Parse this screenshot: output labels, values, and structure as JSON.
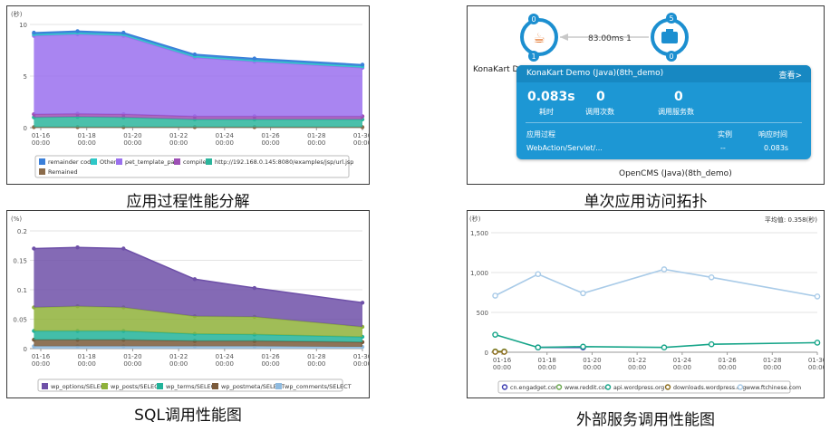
{
  "captions": {
    "app_breakdown": "应用过程性能分解",
    "topology": "单次应用访问拓扑",
    "sql": "SQL调用性能图",
    "external": "外部服务调用性能图"
  },
  "colors": {
    "panel_border": "#3a3a3a",
    "card_bg": "#1d97d4",
    "card_header": "#1788c2",
    "node_ring": "#1c8fd0",
    "badge": "#1c8fd0"
  },
  "chart_data": [
    {
      "id": "app_breakdown",
      "type": "area",
      "stacked": true,
      "ylabel": "(秒)",
      "ylim": [
        0,
        10
      ],
      "yticks": [
        "0",
        "5",
        "10"
      ],
      "xticks": [
        "01-16\n00:00",
        "01-18\n00:00",
        "01-20\n00:00",
        "01-22\n00:00",
        "01-24\n00:00",
        "01-26\n00:00",
        "01-28\n00:00",
        "01-30\n00:00"
      ],
      "x": [
        15.7,
        17.6,
        19.6,
        22.7,
        25.3,
        30.0
      ],
      "legend_position": "bottom",
      "series": [
        {
          "name": "Remained",
          "color": "#8b6b4a",
          "values": [
            0.05,
            0.05,
            0.05,
            0.05,
            0.05,
            0.05
          ]
        },
        {
          "name": "http://192.168.0.145:8080/examples/jsp/url.jsp",
          "color": "#2bb59c",
          "values": [
            0.95,
            1.0,
            0.95,
            0.75,
            0.75,
            0.75
          ]
        },
        {
          "name": "compile",
          "color": "#9d4fb5",
          "values": [
            0.3,
            0.3,
            0.3,
            0.3,
            0.3,
            0.3
          ]
        },
        {
          "name": "pet_template_part",
          "color": "#9a70ee",
          "values": [
            7.6,
            7.7,
            7.6,
            5.7,
            5.3,
            4.7
          ]
        },
        {
          "name": "Other",
          "color": "#2ec8c8",
          "values": [
            0.15,
            0.15,
            0.15,
            0.15,
            0.15,
            0.15
          ]
        },
        {
          "name": "remainder code",
          "color": "#3a7fd9",
          "values": [
            0.15,
            0.15,
            0.15,
            0.15,
            0.15,
            0.15
          ]
        }
      ]
    },
    {
      "id": "sql",
      "type": "area",
      "stacked": true,
      "ylabel": "(%)",
      "ylim": [
        0,
        0.2
      ],
      "yticks": [
        "0",
        "0.05",
        "0.1",
        "0.15",
        "0.2"
      ],
      "xticks": [
        "01-16\n00:00",
        "01-18\n00:00",
        "01-20\n00:00",
        "01-22\n00:00",
        "01-24\n00:00",
        "01-26\n00:00",
        "01-28\n00:00",
        "01-30\n00:00"
      ],
      "x": [
        15.7,
        17.6,
        19.6,
        22.7,
        25.3,
        30.0
      ],
      "legend_position": "bottom",
      "series": [
        {
          "name": "wp_comments/SELECT",
          "color": "#8fbbe0",
          "values": [
            0.004,
            0.004,
            0.004,
            0.004,
            0.004,
            0.003
          ]
        },
        {
          "name": "wp_postmeta/SELECT",
          "color": "#7a5a3a",
          "values": [
            0.011,
            0.011,
            0.011,
            0.009,
            0.009,
            0.008
          ]
        },
        {
          "name": "wp_terms/SELECT",
          "color": "#22b39a",
          "values": [
            0.015,
            0.015,
            0.015,
            0.012,
            0.011,
            0.009
          ]
        },
        {
          "name": "wp_posts/SELECT",
          "color": "#8fb23a",
          "values": [
            0.04,
            0.042,
            0.04,
            0.03,
            0.03,
            0.017
          ]
        },
        {
          "name": "wp_options/SELECT",
          "color": "#6e50a8",
          "values": [
            0.1,
            0.1,
            0.1,
            0.063,
            0.049,
            0.041
          ]
        }
      ]
    },
    {
      "id": "external",
      "type": "line",
      "ylabel": "(秒)",
      "ylim": [
        0,
        1500
      ],
      "yticks": [
        "0",
        "500",
        "1,000",
        "1,500"
      ],
      "xticks": [
        "01-16\n00:00",
        "01-18\n00:00",
        "01-20\n00:00",
        "01-22\n00:00",
        "01-24\n00:00",
        "01-26\n00:00",
        "01-28\n00:00",
        "01-30\n00:00"
      ],
      "average_label": "平均值: 0.358(秒)",
      "legend_position": "bottom",
      "series": [
        {
          "name": "cn.engadget.com",
          "color": "#3b3bb0",
          "x": [
            17.6,
            19.6
          ],
          "values": [
            60,
            60
          ]
        },
        {
          "name": "www.reddit.com",
          "color": "#6aa84f",
          "x": [
            15.7,
            16.1
          ],
          "values": [
            10,
            10
          ]
        },
        {
          "name": "api.wordpress.org",
          "color": "#17a589",
          "x": [
            15.7,
            17.6,
            19.6,
            23.2,
            25.3,
            30.0
          ],
          "values": [
            220,
            60,
            70,
            60,
            100,
            120
          ]
        },
        {
          "name": "downloads.wordpress.org",
          "color": "#8b6b1a",
          "x": [
            15.7,
            16.1
          ],
          "values": [
            5,
            5
          ]
        },
        {
          "name": "www.ftchinese.com",
          "color": "#a9cbe8",
          "x": [
            15.7,
            17.6,
            19.6,
            23.2,
            25.3,
            30.0
          ],
          "values": [
            710,
            980,
            740,
            1040,
            940,
            700
          ]
        }
      ]
    }
  ],
  "topology": {
    "left_node_label": "KonaKart Dem",
    "left_badge_top": "0",
    "left_badge_bottom": "1",
    "right_badge_top": "5",
    "right_badge_bottom": "0",
    "edge_label": "83.00ms 1",
    "bottom_label": "OpenCMS (Java)(8th_demo)",
    "card": {
      "title": "KonaKart Demo (Java)(8th_demo)",
      "view_link": "查看>",
      "metric1_value": "0.083s",
      "metric1_label": "耗时",
      "metric2_value": "0",
      "metric2_label": "调用次数",
      "metric3_value": "0",
      "metric3_label": "调用服务数",
      "col_process": "应用过程",
      "col_instance": "实例",
      "col_response": "响应时间",
      "row_process": "WebAction/Servlet/...",
      "row_instance": "--",
      "row_response": "0.083s"
    }
  }
}
